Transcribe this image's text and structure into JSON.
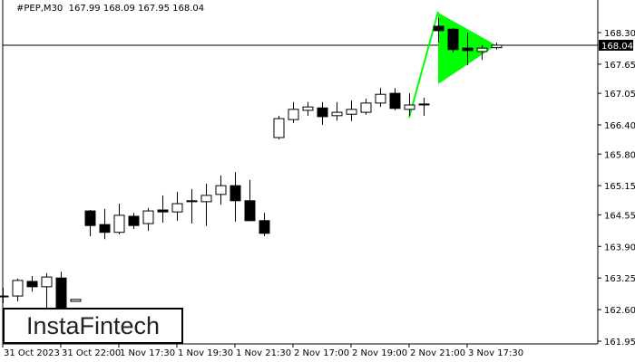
{
  "header": {
    "symbol": "#PEP,M30",
    "ohlc": "167.99 168.09 167.95 168.04"
  },
  "logo": "InstaFintech",
  "chart_data": {
    "type": "candlestick",
    "title": "#PEP,M30",
    "ylim": [
      161.95,
      168.3
    ],
    "y_ticks": [
      "168.30",
      "167.65",
      "167.05",
      "166.40",
      "165.80",
      "165.15",
      "164.55",
      "163.90",
      "163.25",
      "162.60",
      "161.95"
    ],
    "x_ticks": [
      {
        "index": 0,
        "label": "31 Oct 2023"
      },
      {
        "index": 4,
        "label": "31 Oct 22:00"
      },
      {
        "index": 8,
        "label": "1 Nov 17:30"
      },
      {
        "index": 12,
        "label": "1 Nov 19:30"
      },
      {
        "index": 16,
        "label": "1 Nov 21:30"
      },
      {
        "index": 20,
        "label": "2 Nov 17:00"
      },
      {
        "index": 24,
        "label": "2 Nov 19:00"
      },
      {
        "index": 28,
        "label": "2 Nov 21:00"
      },
      {
        "index": 32,
        "label": "3 Nov 17:30"
      }
    ],
    "candles": [
      [
        162.88,
        163.05,
        162.73,
        162.88
      ],
      [
        162.88,
        163.24,
        162.77,
        163.2
      ],
      [
        163.18,
        163.29,
        162.97,
        163.07
      ],
      [
        163.07,
        163.35,
        162.55,
        163.27
      ],
      [
        163.25,
        163.38,
        162.27,
        162.4
      ],
      [
        162.77,
        162.81,
        162.77,
        162.81
      ],
      [
        164.63,
        164.65,
        164.11,
        164.33
      ],
      [
        164.35,
        164.67,
        164.05,
        164.19
      ],
      [
        164.19,
        164.78,
        164.15,
        164.54
      ],
      [
        164.52,
        164.59,
        164.26,
        164.33
      ],
      [
        164.37,
        164.69,
        164.22,
        164.63
      ],
      [
        164.65,
        164.95,
        164.39,
        164.61
      ],
      [
        164.61,
        165.02,
        164.43,
        164.78
      ],
      [
        164.84,
        165.08,
        164.37,
        164.82
      ],
      [
        164.82,
        165.19,
        164.32,
        164.95
      ],
      [
        164.97,
        165.36,
        164.76,
        165.15
      ],
      [
        165.15,
        165.43,
        164.41,
        164.84
      ],
      [
        164.84,
        165.27,
        164.43,
        164.43
      ],
      [
        164.43,
        164.59,
        164.11,
        164.17
      ],
      [
        166.14,
        166.59,
        166.1,
        166.53
      ],
      [
        166.51,
        166.87,
        166.44,
        166.72
      ],
      [
        166.7,
        166.87,
        166.59,
        166.77
      ],
      [
        166.75,
        166.87,
        166.4,
        166.57
      ],
      [
        166.59,
        166.87,
        166.49,
        166.66
      ],
      [
        166.62,
        166.9,
        166.48,
        166.72
      ],
      [
        166.66,
        166.94,
        166.61,
        166.85
      ],
      [
        166.85,
        167.16,
        166.77,
        167.03
      ],
      [
        167.05,
        167.16,
        166.7,
        166.74
      ],
      [
        166.72,
        167.05,
        166.59,
        166.81
      ],
      [
        166.83,
        166.96,
        166.59,
        166.83
      ],
      [
        168.43,
        168.6,
        168.1,
        168.34
      ],
      [
        168.37,
        168.39,
        167.89,
        167.95
      ],
      [
        167.98,
        168.3,
        167.63,
        167.93
      ],
      [
        167.91,
        168.04,
        167.74,
        167.98
      ],
      [
        167.99,
        168.09,
        167.95,
        168.04
      ]
    ],
    "current_price": "168.04",
    "pattern": {
      "name": "bullish pennant",
      "color": "#00ff00",
      "pole": [
        [
          28,
          166.55
        ],
        [
          30,
          168.73
        ]
      ],
      "triangle": [
        [
          30,
          168.71
        ],
        [
          30,
          167.24
        ],
        [
          34,
          168.04
        ]
      ]
    },
    "colors": {
      "bull_body": "#ffffff",
      "bear_body": "#000000",
      "outline": "#000000",
      "price_label_bg": "#000000"
    }
  }
}
